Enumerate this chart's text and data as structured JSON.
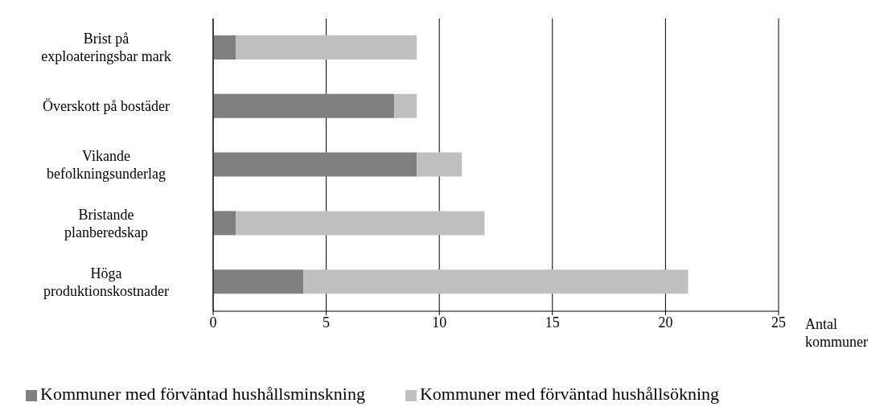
{
  "chart_data": {
    "type": "bar",
    "orientation": "horizontal",
    "stacked": true,
    "xlabel": "Antal kommuner",
    "categories": [
      "Brist på exploateringsbar mark",
      "Överskott på bostäder",
      "Vikande befolkningsunderlag",
      "Bristande planberedskap",
      "Höga produktionskostnader"
    ],
    "series": [
      {
        "name": "Kommuner med förväntad hushållsminskning",
        "color": "#808080",
        "values": [
          1,
          8,
          9,
          1,
          4
        ]
      },
      {
        "name": "Kommuner med förväntad hushållsökning",
        "color": "#c0c0c0",
        "values": [
          8,
          1,
          2,
          11,
          17
        ]
      }
    ],
    "xlim": [
      0,
      25
    ],
    "xticks": [
      0,
      5,
      10,
      15,
      20,
      25
    ],
    "grid": "x",
    "legend": "bottom"
  }
}
